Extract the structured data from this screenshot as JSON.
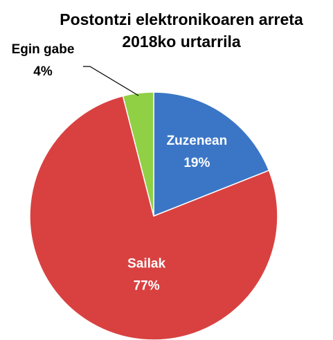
{
  "chart_data": {
    "type": "pie",
    "title": "Postontzi elektronikoaren arreta",
    "subtitle": "2018ko urtarrila",
    "categories": [
      "Zuzenean",
      "Sailak",
      "Egin gabe"
    ],
    "values": [
      19,
      77,
      4
    ],
    "value_labels": [
      "19%",
      "77%",
      "4%"
    ],
    "colors": [
      "#3b76c6",
      "#d94141",
      "#8fd045"
    ]
  }
}
